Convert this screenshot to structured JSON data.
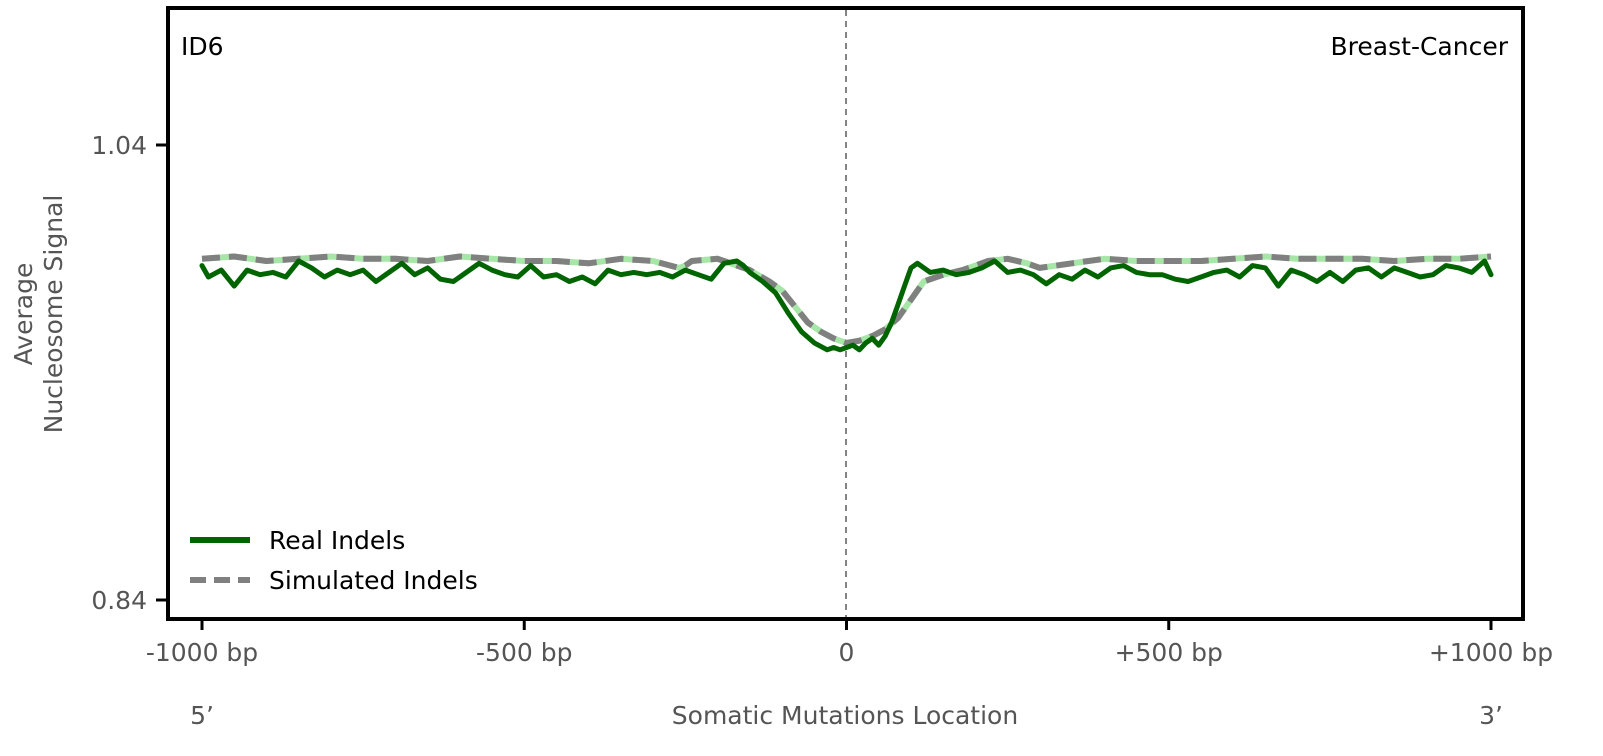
{
  "chart_data": {
    "type": "line",
    "signature_label": "ID6",
    "cancer_type_label": "Breast-Cancer",
    "ylabel_line1": "Average",
    "ylabel_line2": "Nucleosome Signal",
    "xlabel": "Somatic Mutations Location",
    "x_end_left": "5’",
    "x_end_right": "3’",
    "xlim": [
      -1000,
      1000
    ],
    "ylim": [
      0.84,
      1.04
    ],
    "x_ticks": [
      {
        "value": -1000,
        "label": "-1000 bp"
      },
      {
        "value": -500,
        "label": "-500 bp"
      },
      {
        "value": 0,
        "label": "0"
      },
      {
        "value": 500,
        "label": "+500 bp"
      },
      {
        "value": 1000,
        "label": "+1000 bp"
      }
    ],
    "y_ticks": [
      {
        "value": 1.04,
        "label": "1.04"
      },
      {
        "value": 0.84,
        "label": "0.84"
      }
    ],
    "legend_position": "lower-left",
    "center_line": true,
    "series": [
      {
        "name": "Real Indels",
        "color": "#006400",
        "style": "solid",
        "x": [
          -1000,
          -990,
          -970,
          -950,
          -930,
          -910,
          -890,
          -870,
          -850,
          -830,
          -810,
          -790,
          -770,
          -750,
          -730,
          -710,
          -690,
          -670,
          -650,
          -630,
          -610,
          -590,
          -570,
          -550,
          -530,
          -510,
          -490,
          -470,
          -450,
          -430,
          -410,
          -390,
          -370,
          -350,
          -330,
          -310,
          -290,
          -270,
          -250,
          -230,
          -210,
          -190,
          -170,
          -160,
          -150,
          -130,
          -110,
          -90,
          -70,
          -50,
          -30,
          -20,
          -10,
          0,
          10,
          20,
          30,
          40,
          50,
          60,
          70,
          80,
          90,
          100,
          110,
          130,
          150,
          170,
          190,
          210,
          230,
          250,
          270,
          290,
          310,
          330,
          350,
          370,
          390,
          410,
          430,
          450,
          470,
          490,
          510,
          530,
          550,
          570,
          590,
          610,
          630,
          650,
          670,
          690,
          710,
          730,
          750,
          770,
          790,
          810,
          830,
          850,
          870,
          890,
          910,
          930,
          950,
          970,
          990,
          1000
        ],
        "y": [
          0.987,
          0.982,
          0.985,
          0.978,
          0.985,
          0.983,
          0.984,
          0.982,
          0.989,
          0.986,
          0.982,
          0.985,
          0.983,
          0.985,
          0.98,
          0.984,
          0.988,
          0.983,
          0.986,
          0.981,
          0.98,
          0.984,
          0.988,
          0.985,
          0.983,
          0.982,
          0.987,
          0.982,
          0.983,
          0.98,
          0.982,
          0.979,
          0.985,
          0.983,
          0.984,
          0.983,
          0.984,
          0.982,
          0.985,
          0.983,
          0.981,
          0.988,
          0.989,
          0.987,
          0.984,
          0.98,
          0.975,
          0.966,
          0.958,
          0.953,
          0.95,
          0.951,
          0.95,
          0.951,
          0.952,
          0.95,
          0.953,
          0.955,
          0.952,
          0.956,
          0.962,
          0.97,
          0.978,
          0.986,
          0.988,
          0.984,
          0.985,
          0.983,
          0.984,
          0.986,
          0.989,
          0.984,
          0.985,
          0.983,
          0.979,
          0.983,
          0.981,
          0.985,
          0.982,
          0.986,
          0.987,
          0.984,
          0.983,
          0.983,
          0.981,
          0.98,
          0.982,
          0.984,
          0.985,
          0.982,
          0.987,
          0.986,
          0.978,
          0.985,
          0.983,
          0.98,
          0.984,
          0.98,
          0.985,
          0.986,
          0.982,
          0.986,
          0.984,
          0.982,
          0.983,
          0.987,
          0.986,
          0.984,
          0.989,
          0.983
        ]
      },
      {
        "name": "Simulated Indels",
        "color": "#808080",
        "highlight_color": "#a6e6a6",
        "style": "dashed",
        "x": [
          -1000,
          -950,
          -900,
          -850,
          -800,
          -750,
          -700,
          -650,
          -600,
          -550,
          -500,
          -450,
          -400,
          -350,
          -300,
          -260,
          -250,
          -240,
          -200,
          -180,
          -150,
          -120,
          -100,
          -80,
          -60,
          -40,
          -20,
          0,
          20,
          40,
          60,
          80,
          100,
          120,
          150,
          180,
          200,
          220,
          250,
          280,
          300,
          350,
          400,
          450,
          500,
          550,
          600,
          650,
          700,
          750,
          800,
          850,
          900,
          950,
          1000
        ],
        "y": [
          0.99,
          0.991,
          0.989,
          0.99,
          0.991,
          0.99,
          0.99,
          0.989,
          0.991,
          0.99,
          0.989,
          0.989,
          0.988,
          0.99,
          0.989,
          0.986,
          0.987,
          0.989,
          0.99,
          0.988,
          0.985,
          0.98,
          0.976,
          0.969,
          0.962,
          0.958,
          0.955,
          0.953,
          0.954,
          0.956,
          0.959,
          0.964,
          0.972,
          0.98,
          0.983,
          0.985,
          0.987,
          0.989,
          0.99,
          0.988,
          0.986,
          0.988,
          0.99,
          0.989,
          0.989,
          0.989,
          0.99,
          0.991,
          0.99,
          0.99,
          0.99,
          0.989,
          0.99,
          0.99,
          0.991
        ]
      }
    ]
  }
}
